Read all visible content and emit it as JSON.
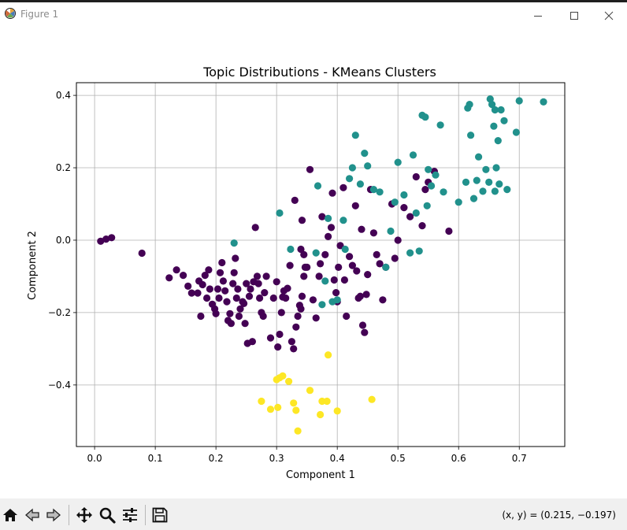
{
  "window": {
    "title": "Figure 1",
    "icons": {
      "app": "matplotlib-figure-icon",
      "minimize": "minimize-icon",
      "maximize": "maximize-icon",
      "close": "close-icon"
    }
  },
  "toolbar": {
    "buttons": [
      {
        "name": "home",
        "icon": "home-icon"
      },
      {
        "name": "back",
        "icon": "back-arrow-icon"
      },
      {
        "name": "forward",
        "icon": "forward-arrow-icon"
      },
      {
        "name": "pan",
        "icon": "move-icon"
      },
      {
        "name": "zoom",
        "icon": "zoom-icon"
      },
      {
        "name": "configure-subplots",
        "icon": "sliders-icon"
      },
      {
        "name": "save",
        "icon": "save-icon"
      }
    ],
    "coordinates": "(x, y) = (0.215, −0.197)"
  },
  "chart_data": {
    "type": "scatter",
    "title": "Topic Distributions - KMeans Clusters",
    "xlabel": "Component 1",
    "ylabel": "Component 2",
    "xlim": [
      -0.03,
      0.775
    ],
    "ylim": [
      -0.57,
      0.435
    ],
    "xticks": [
      0.0,
      0.1,
      0.2,
      0.3,
      0.4,
      0.5,
      0.6,
      0.7
    ],
    "xtick_labels": [
      "0.0",
      "0.1",
      "0.2",
      "0.3",
      "0.4",
      "0.5",
      "0.6",
      "0.7"
    ],
    "yticks": [
      -0.4,
      -0.2,
      0.0,
      0.2,
      0.4
    ],
    "ytick_labels": [
      "−0.4",
      "−0.2",
      "0.0",
      "0.2",
      "0.4"
    ],
    "grid": true,
    "legend": "none",
    "series": [
      {
        "color": "#440154",
        "points": [
          [
            0.01,
            -0.003
          ],
          [
            0.019,
            0.003
          ],
          [
            0.028,
            0.007
          ],
          [
            0.078,
            -0.036
          ],
          [
            0.123,
            -0.104
          ],
          [
            0.135,
            -0.082
          ],
          [
            0.146,
            -0.097
          ],
          [
            0.154,
            -0.127
          ],
          [
            0.16,
            -0.146
          ],
          [
            0.17,
            -0.146
          ],
          [
            0.172,
            -0.113
          ],
          [
            0.175,
            -0.21
          ],
          [
            0.178,
            -0.123
          ],
          [
            0.182,
            -0.097
          ],
          [
            0.185,
            -0.16
          ],
          [
            0.188,
            -0.082
          ],
          [
            0.19,
            -0.135
          ],
          [
            0.194,
            -0.177
          ],
          [
            0.198,
            -0.19
          ],
          [
            0.2,
            -0.203
          ],
          [
            0.203,
            -0.135
          ],
          [
            0.205,
            -0.16
          ],
          [
            0.207,
            -0.09
          ],
          [
            0.21,
            -0.062
          ],
          [
            0.212,
            -0.113
          ],
          [
            0.215,
            -0.14
          ],
          [
            0.218,
            -0.17
          ],
          [
            0.22,
            -0.222
          ],
          [
            0.223,
            -0.203
          ],
          [
            0.225,
            -0.23
          ],
          [
            0.228,
            -0.12
          ],
          [
            0.23,
            -0.09
          ],
          [
            0.232,
            -0.05
          ],
          [
            0.234,
            -0.16
          ],
          [
            0.236,
            -0.135
          ],
          [
            0.238,
            -0.21
          ],
          [
            0.24,
            -0.19
          ],
          [
            0.244,
            -0.17
          ],
          [
            0.246,
            -0.175
          ],
          [
            0.248,
            -0.23
          ],
          [
            0.25,
            -0.12
          ],
          [
            0.252,
            -0.285
          ],
          [
            0.255,
            -0.155
          ],
          [
            0.257,
            -0.135
          ],
          [
            0.26,
            -0.28
          ],
          [
            0.262,
            -0.115
          ],
          [
            0.265,
            0.035
          ],
          [
            0.268,
            -0.1
          ],
          [
            0.27,
            -0.12
          ],
          [
            0.272,
            -0.16
          ],
          [
            0.275,
            -0.2
          ],
          [
            0.278,
            -0.21
          ],
          [
            0.28,
            -0.145
          ],
          [
            0.283,
            -0.1
          ],
          [
            0.29,
            -0.27
          ],
          [
            0.295,
            -0.16
          ],
          [
            0.3,
            -0.115
          ],
          [
            0.302,
            -0.295
          ],
          [
            0.305,
            -0.26
          ],
          [
            0.308,
            -0.2
          ],
          [
            0.31,
            -0.157
          ],
          [
            0.312,
            -0.14
          ],
          [
            0.315,
            -0.16
          ],
          [
            0.318,
            -0.133
          ],
          [
            0.322,
            -0.07
          ],
          [
            0.325,
            -0.28
          ],
          [
            0.328,
            -0.3
          ],
          [
            0.332,
            -0.24
          ],
          [
            0.335,
            -0.21
          ],
          [
            0.338,
            -0.18
          ],
          [
            0.34,
            -0.19
          ],
          [
            0.342,
            -0.155
          ],
          [
            0.345,
            -0.1
          ],
          [
            0.347,
            -0.075
          ],
          [
            0.33,
            0.11
          ],
          [
            0.342,
            0.055
          ],
          [
            0.34,
            -0.025
          ],
          [
            0.345,
            -0.04
          ],
          [
            0.35,
            -0.075
          ],
          [
            0.355,
            0.195
          ],
          [
            0.36,
            -0.165
          ],
          [
            0.365,
            -0.215
          ],
          [
            0.37,
            -0.1
          ],
          [
            0.372,
            -0.065
          ],
          [
            0.375,
            0.065
          ],
          [
            0.38,
            -0.04
          ],
          [
            0.385,
            0.01
          ],
          [
            0.39,
            0.035
          ],
          [
            0.392,
            0.13
          ],
          [
            0.395,
            -0.11
          ],
          [
            0.398,
            -0.145
          ],
          [
            0.4,
            -0.17
          ],
          [
            0.402,
            -0.075
          ],
          [
            0.405,
            -0.015
          ],
          [
            0.41,
            0.145
          ],
          [
            0.412,
            -0.11
          ],
          [
            0.415,
            -0.21
          ],
          [
            0.42,
            -0.045
          ],
          [
            0.425,
            -0.07
          ],
          [
            0.43,
            0.095
          ],
          [
            0.432,
            -0.085
          ],
          [
            0.435,
            -0.16
          ],
          [
            0.438,
            -0.155
          ],
          [
            0.44,
            0.03
          ],
          [
            0.442,
            -0.235
          ],
          [
            0.445,
            -0.255
          ],
          [
            0.448,
            -0.15
          ],
          [
            0.45,
            -0.095
          ],
          [
            0.455,
            0.14
          ],
          [
            0.46,
            0.02
          ],
          [
            0.465,
            -0.04
          ],
          [
            0.47,
            -0.065
          ],
          [
            0.475,
            -0.165
          ],
          [
            0.48,
            -0.075
          ],
          [
            0.49,
            0.1
          ],
          [
            0.495,
            -0.05
          ],
          [
            0.5,
            0.0
          ],
          [
            0.51,
            0.09
          ],
          [
            0.52,
            0.065
          ],
          [
            0.53,
            0.175
          ],
          [
            0.54,
            0.04
          ],
          [
            0.545,
            0.14
          ],
          [
            0.55,
            0.16
          ],
          [
            0.56,
            0.19
          ],
          [
            0.584,
            0.025
          ]
        ]
      },
      {
        "color": "#21918c",
        "points": [
          [
            0.23,
            -0.008
          ],
          [
            0.305,
            0.075
          ],
          [
            0.323,
            -0.025
          ],
          [
            0.365,
            -0.035
          ],
          [
            0.368,
            0.15
          ],
          [
            0.375,
            -0.178
          ],
          [
            0.38,
            -0.113
          ],
          [
            0.385,
            0.06
          ],
          [
            0.392,
            -0.17
          ],
          [
            0.4,
            -0.165
          ],
          [
            0.41,
            0.055
          ],
          [
            0.413,
            -0.025
          ],
          [
            0.42,
            0.17
          ],
          [
            0.425,
            0.2
          ],
          [
            0.43,
            0.29
          ],
          [
            0.438,
            0.155
          ],
          [
            0.445,
            0.24
          ],
          [
            0.45,
            0.205
          ],
          [
            0.46,
            0.14
          ],
          [
            0.47,
            0.133
          ],
          [
            0.48,
            -0.075
          ],
          [
            0.488,
            0.025
          ],
          [
            0.495,
            0.105
          ],
          [
            0.5,
            0.215
          ],
          [
            0.51,
            0.125
          ],
          [
            0.52,
            -0.035
          ],
          [
            0.525,
            0.235
          ],
          [
            0.53,
            0.075
          ],
          [
            0.535,
            -0.03
          ],
          [
            0.54,
            0.345
          ],
          [
            0.545,
            0.34
          ],
          [
            0.548,
            0.095
          ],
          [
            0.55,
            0.195
          ],
          [
            0.555,
            0.15
          ],
          [
            0.562,
            0.18
          ],
          [
            0.57,
            0.318
          ],
          [
            0.575,
            0.133
          ],
          [
            0.6,
            0.105
          ],
          [
            0.612,
            0.16
          ],
          [
            0.615,
            0.365
          ],
          [
            0.618,
            0.375
          ],
          [
            0.62,
            0.29
          ],
          [
            0.625,
            0.115
          ],
          [
            0.63,
            0.165
          ],
          [
            0.633,
            0.23
          ],
          [
            0.64,
            0.135
          ],
          [
            0.645,
            0.195
          ],
          [
            0.65,
            0.16
          ],
          [
            0.652,
            0.39
          ],
          [
            0.655,
            0.375
          ],
          [
            0.658,
            0.315
          ],
          [
            0.66,
            0.36
          ],
          [
            0.66,
            0.135
          ],
          [
            0.662,
            0.2
          ],
          [
            0.665,
            0.275
          ],
          [
            0.667,
            0.155
          ],
          [
            0.67,
            0.36
          ],
          [
            0.675,
            0.33
          ],
          [
            0.68,
            0.14
          ],
          [
            0.695,
            0.298
          ],
          [
            0.7,
            0.385
          ],
          [
            0.74,
            0.382
          ]
        ]
      },
      {
        "color": "#fde725",
        "points": [
          [
            0.275,
            -0.445
          ],
          [
            0.29,
            -0.467
          ],
          [
            0.3,
            -0.385
          ],
          [
            0.302,
            -0.462
          ],
          [
            0.305,
            -0.38
          ],
          [
            0.31,
            -0.375
          ],
          [
            0.32,
            -0.39
          ],
          [
            0.328,
            -0.45
          ],
          [
            0.332,
            -0.47
          ],
          [
            0.335,
            -0.527
          ],
          [
            0.355,
            -0.415
          ],
          [
            0.372,
            -0.482
          ],
          [
            0.375,
            -0.445
          ],
          [
            0.383,
            -0.445
          ],
          [
            0.385,
            -0.317
          ],
          [
            0.4,
            -0.472
          ],
          [
            0.457,
            -0.44
          ]
        ]
      }
    ]
  }
}
